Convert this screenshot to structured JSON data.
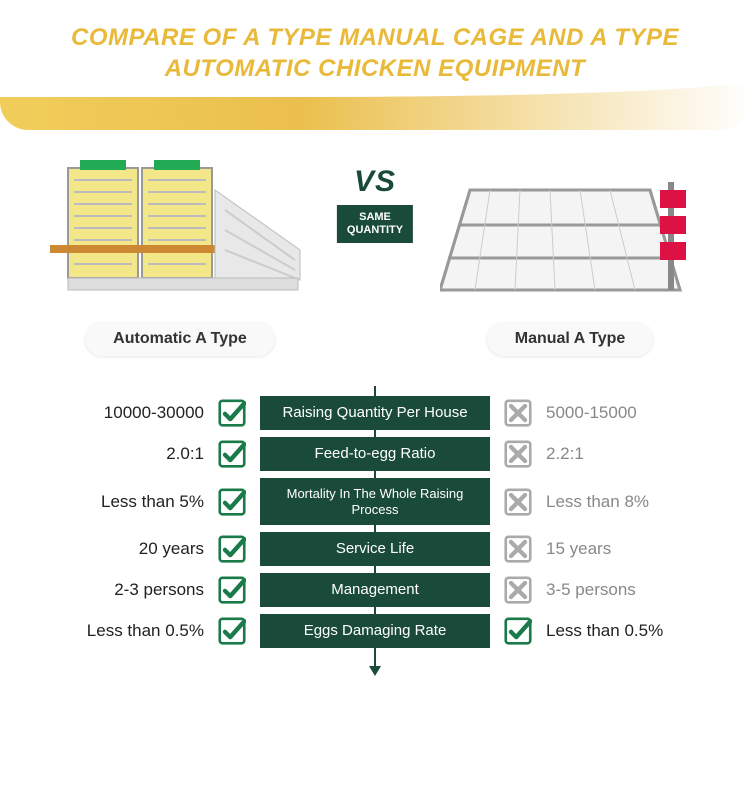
{
  "header": {
    "title": "COMPARE OF A TYPE MANUAL CAGE AND A TYPE AUTOMATIC CHICKEN EQUIPMENT",
    "title_color": "#e9b93a",
    "banner_gradient_from": "#f0c94a",
    "banner_gradient_to": "#ffffff"
  },
  "products": {
    "left": {
      "label": "Automatic A Type"
    },
    "right": {
      "label": "Manual A Type"
    },
    "vs": {
      "text": "VS",
      "badge_line1": "SAME",
      "badge_line2": "QUANTITY",
      "badge_bg": "#1a4a3a"
    }
  },
  "colors": {
    "primary_green": "#1a4a3a",
    "check_green": "#1a7a4a",
    "cross_gray": "#aaaaaa",
    "muted_text": "#888888",
    "dark_text": "#222222"
  },
  "rows": [
    {
      "left": "10000-30000",
      "left_icon": "check",
      "metric": "Raising Quantity Per House",
      "right_icon": "cross",
      "right": "5000-15000"
    },
    {
      "left": "2.0:1",
      "left_icon": "check",
      "metric": "Feed-to-egg Ratio",
      "right_icon": "cross",
      "right": "2.2:1"
    },
    {
      "left": "Less than 5%",
      "left_icon": "check",
      "metric": "Mortality In The Whole Raising Process",
      "right_icon": "cross",
      "right": "Less than 8%",
      "small": true
    },
    {
      "left": "20 years",
      "left_icon": "check",
      "metric": "Service Life",
      "right_icon": "cross",
      "right": "15 years"
    },
    {
      "left": "2-3 persons",
      "left_icon": "check",
      "metric": "Management",
      "right_icon": "cross",
      "right": "3-5 persons"
    },
    {
      "left": "Less than 0.5%",
      "left_icon": "check",
      "metric": "Eggs Damaging Rate",
      "right_icon": "check",
      "right": "Less than 0.5%"
    }
  ]
}
